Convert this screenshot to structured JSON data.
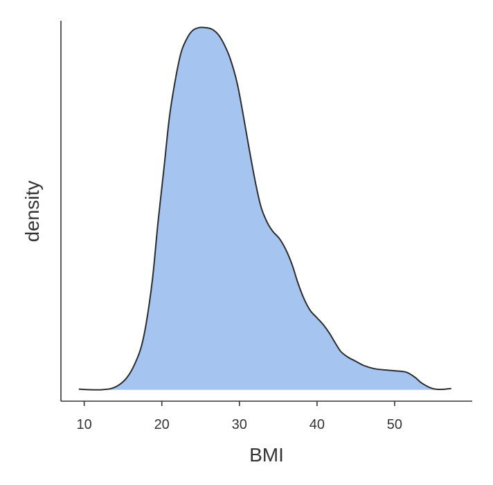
{
  "chart_data": {
    "type": "area",
    "xlabel": "BMI",
    "ylabel": "density",
    "xlim": [
      7,
      60
    ],
    "ylim": [
      -0.0025,
      0.0815
    ],
    "x_ticks": [
      10,
      20,
      30,
      40,
      50
    ],
    "x_tick_labels": [
      "10",
      "20",
      "30",
      "40",
      "50"
    ],
    "grid": false,
    "fill_color": "#a6c4f0",
    "line_color": "#2b2b2b",
    "fill_range": [
      12.4,
      55.1
    ],
    "series": [
      {
        "x": [
          9.3,
          10.5,
          11.5,
          12.4,
          13.5,
          14.5,
          15.5,
          16.4,
          17.3,
          18,
          18.8,
          19.5,
          20.3,
          21,
          21.8,
          22.5,
          23.3,
          24,
          24.8,
          25.5,
          26,
          26.6,
          27.3,
          28,
          28.8,
          29.7,
          30.5,
          31.3,
          32.1,
          32.8,
          33.6,
          34.3,
          35.2,
          36,
          36.8,
          37.5,
          38.3,
          39.1,
          40,
          40.8,
          41.6,
          42.4,
          43.1,
          44,
          45,
          46,
          47.3,
          48.7,
          50.1,
          51.5,
          52.6,
          53.4,
          54.3,
          55.1,
          56.1,
          57.3
        ],
        "y": [
          0.00015,
          5e-05,
          0.0,
          5e-05,
          0.0003,
          0.0011,
          0.0027,
          0.0053,
          0.0092,
          0.0148,
          0.0245,
          0.0368,
          0.0493,
          0.0605,
          0.069,
          0.0746,
          0.0778,
          0.0794,
          0.08,
          0.08,
          0.0799,
          0.0795,
          0.0784,
          0.0764,
          0.0732,
          0.0678,
          0.0606,
          0.0528,
          0.0455,
          0.0403,
          0.0369,
          0.035,
          0.0333,
          0.0309,
          0.0276,
          0.0238,
          0.0202,
          0.0176,
          0.0159,
          0.0144,
          0.0125,
          0.0102,
          0.0084,
          0.0072,
          0.0063,
          0.0054,
          0.0047,
          0.0044,
          0.0042,
          0.0039,
          0.0028,
          0.0016,
          0.0007,
          0.0002,
          0.0001,
          0.0003
        ]
      }
    ]
  }
}
